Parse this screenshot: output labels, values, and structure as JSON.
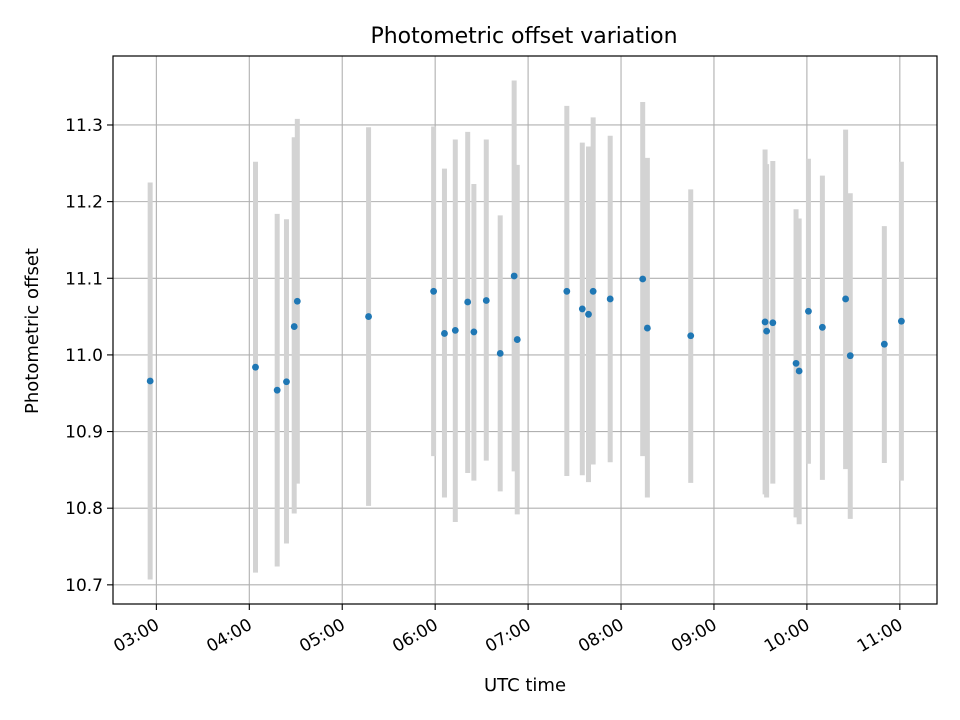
{
  "chart_data": {
    "type": "scatter",
    "title": "Photometric offset variation",
    "xlabel": "UTC time",
    "ylabel": "Photometric offset",
    "x_ticks": [
      "03:00",
      "04:00",
      "05:00",
      "06:00",
      "07:00",
      "08:00",
      "09:00",
      "10:00",
      "11:00"
    ],
    "y_ticks": [
      "10.7",
      "10.8",
      "10.9",
      "11.0",
      "11.1",
      "11.2",
      "11.3"
    ],
    "xlim": [
      "02:32",
      "11:24"
    ],
    "ylim": [
      10.675,
      11.39
    ],
    "grid": true,
    "colors": {
      "point": "#1f77b4",
      "errorbar": "#d3d3d3",
      "grid": "#b0b0b0"
    },
    "series": [
      {
        "points": [
          {
            "x": "02:56",
            "y": 10.966,
            "ylow": 10.707,
            "yhigh": 11.225
          },
          {
            "x": "04:04",
            "y": 10.984,
            "ylow": 10.716,
            "yhigh": 11.252
          },
          {
            "x": "04:18",
            "y": 10.954,
            "ylow": 10.724,
            "yhigh": 11.184
          },
          {
            "x": "04:24",
            "y": 10.965,
            "ylow": 10.754,
            "yhigh": 11.177
          },
          {
            "x": "04:29",
            "y": 11.037,
            "ylow": 10.793,
            "yhigh": 11.284
          },
          {
            "x": "04:31",
            "y": 11.07,
            "ylow": 10.832,
            "yhigh": 11.308
          },
          {
            "x": "05:17",
            "y": 11.05,
            "ylow": 10.803,
            "yhigh": 11.297
          },
          {
            "x": "05:59",
            "y": 11.083,
            "ylow": 10.868,
            "yhigh": 11.298
          },
          {
            "x": "06:06",
            "y": 11.028,
            "ylow": 10.814,
            "yhigh": 11.243
          },
          {
            "x": "06:13",
            "y": 11.032,
            "ylow": 10.782,
            "yhigh": 11.281
          },
          {
            "x": "06:21",
            "y": 11.069,
            "ylow": 10.846,
            "yhigh": 11.291
          },
          {
            "x": "06:25",
            "y": 11.03,
            "ylow": 10.836,
            "yhigh": 11.223
          },
          {
            "x": "06:33",
            "y": 11.071,
            "ylow": 10.862,
            "yhigh": 11.281
          },
          {
            "x": "06:42",
            "y": 11.002,
            "ylow": 10.822,
            "yhigh": 11.182
          },
          {
            "x": "06:51",
            "y": 11.103,
            "ylow": 10.848,
            "yhigh": 11.358
          },
          {
            "x": "06:53",
            "y": 11.02,
            "ylow": 10.792,
            "yhigh": 11.248
          },
          {
            "x": "07:25",
            "y": 11.083,
            "ylow": 10.842,
            "yhigh": 11.325
          },
          {
            "x": "07:35",
            "y": 11.06,
            "ylow": 10.843,
            "yhigh": 11.277
          },
          {
            "x": "07:39",
            "y": 11.053,
            "ylow": 10.834,
            "yhigh": 11.272
          },
          {
            "x": "07:42",
            "y": 11.083,
            "ylow": 10.857,
            "yhigh": 11.31
          },
          {
            "x": "07:53",
            "y": 11.073,
            "ylow": 10.86,
            "yhigh": 11.286
          },
          {
            "x": "08:14",
            "y": 11.099,
            "ylow": 10.868,
            "yhigh": 11.33
          },
          {
            "x": "08:17",
            "y": 11.035,
            "ylow": 10.814,
            "yhigh": 11.257
          },
          {
            "x": "08:45",
            "y": 11.025,
            "ylow": 10.833,
            "yhigh": 11.216
          },
          {
            "x": "09:33",
            "y": 11.043,
            "ylow": 10.818,
            "yhigh": 11.268
          },
          {
            "x": "09:34",
            "y": 11.031,
            "ylow": 10.814,
            "yhigh": 11.249
          },
          {
            "x": "09:38",
            "y": 11.042,
            "ylow": 10.832,
            "yhigh": 11.253
          },
          {
            "x": "09:53",
            "y": 10.989,
            "ylow": 10.788,
            "yhigh": 11.19
          },
          {
            "x": "09:55",
            "y": 10.979,
            "ylow": 10.779,
            "yhigh": 11.178
          },
          {
            "x": "10:01",
            "y": 11.057,
            "ylow": 10.858,
            "yhigh": 11.256
          },
          {
            "x": "10:10",
            "y": 11.036,
            "ylow": 10.837,
            "yhigh": 11.234
          },
          {
            "x": "10:25",
            "y": 11.073,
            "ylow": 10.851,
            "yhigh": 11.294
          },
          {
            "x": "10:28",
            "y": 10.999,
            "ylow": 10.786,
            "yhigh": 11.211
          },
          {
            "x": "10:50",
            "y": 11.014,
            "ylow": 10.859,
            "yhigh": 11.168
          },
          {
            "x": "11:01",
            "y": 11.044,
            "ylow": 10.836,
            "yhigh": 11.252
          }
        ]
      }
    ]
  }
}
